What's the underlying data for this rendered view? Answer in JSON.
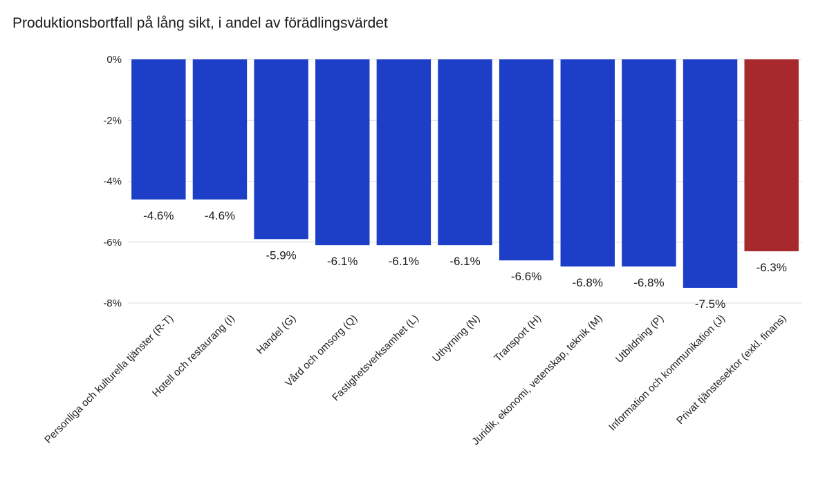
{
  "chart_data": {
    "type": "bar",
    "title": "Produktionsbortfall på lång sikt, i andel av förädlingsvärdet",
    "xlabel": "",
    "ylabel": "",
    "ylim": [
      -8,
      0
    ],
    "yticks": [
      0,
      -2,
      -4,
      -6,
      -8
    ],
    "ytick_labels": [
      "0%",
      "-2%",
      "-4%",
      "-6%",
      "-8%"
    ],
    "grid": true,
    "categories": [
      "Personliga och kulturella tjänster (R-T)",
      "Hotell och restaurang (I)",
      "Handel (G)",
      "Vård och omsorg (Q)",
      "Fastighetsverksamhet (L)",
      "Uthyrning (N)",
      "Transport (H)",
      "Juridik, ekonomi, vetenskap, teknik (M)",
      "Utbildning (P)",
      "Information och kommunikation (J)",
      "Privat tjänstesektor (exkl. finans)"
    ],
    "values": [
      -4.6,
      -4.6,
      -5.9,
      -6.1,
      -6.1,
      -6.1,
      -6.6,
      -6.8,
      -6.8,
      -7.5,
      -6.3
    ],
    "data_labels": [
      "-4.6%",
      "-4.6%",
      "-5.9%",
      "-6.1%",
      "-6.1%",
      "-6.1%",
      "-6.6%",
      "-6.8%",
      "-6.8%",
      "-7.5%",
      "-6.3%"
    ],
    "colors": [
      "#1d3ec7",
      "#1d3ec7",
      "#1d3ec7",
      "#1d3ec7",
      "#1d3ec7",
      "#1d3ec7",
      "#1d3ec7",
      "#1d3ec7",
      "#1d3ec7",
      "#1d3ec7",
      "#a8292b"
    ],
    "gridline_color": "#dcdcdc"
  }
}
